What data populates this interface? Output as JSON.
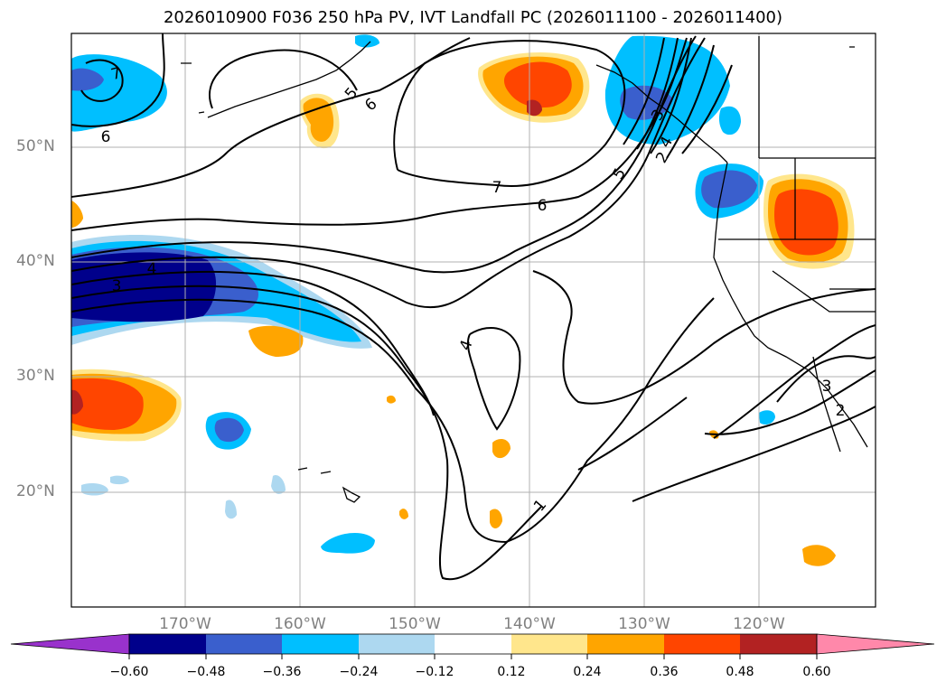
{
  "title": "2026010900 F036 250 hPa PV, IVT Landfall PC (2026011100 - 2026011400)",
  "map": {
    "lat_labels": [
      "50°N",
      "40°N",
      "30°N",
      "20°N"
    ],
    "lon_labels": [
      "170°W",
      "160°W",
      "150°W",
      "140°W",
      "130°W",
      "120°W"
    ],
    "contour_labels": [
      "7",
      "6",
      "5",
      "6",
      "7",
      "6",
      "3",
      "4",
      "5",
      "4",
      "4",
      "3",
      "2",
      "1",
      "3",
      "2"
    ],
    "colors": {
      "grid": "#b0b0b0",
      "contour": "#000000",
      "land": "#000000"
    }
  },
  "colorbar": {
    "tick_labels": [
      "−0.60",
      "−0.48",
      "−0.36",
      "−0.24",
      "−0.12",
      "0.12",
      "0.24",
      "0.36",
      "0.48",
      "0.60"
    ],
    "colors": [
      "#9932cc",
      "#00008b",
      "#3a5fcd",
      "#00bfff",
      "#add8f0",
      "#ffffff",
      "#ffe68c",
      "#ffa500",
      "#ff4500",
      "#b22222",
      "#ff88aa"
    ]
  }
}
